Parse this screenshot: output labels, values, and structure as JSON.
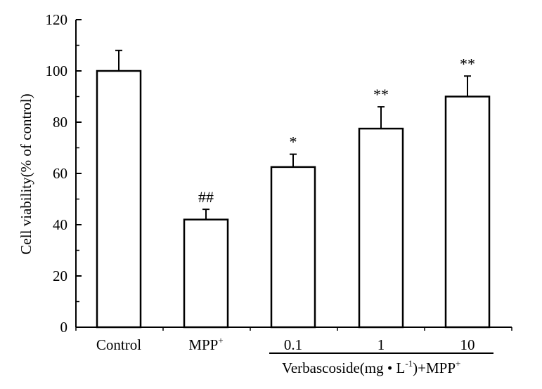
{
  "chart_data": {
    "type": "bar",
    "categories": [
      {
        "main": "Control",
        "sup": ""
      },
      {
        "main": "MPP",
        "sup": "+"
      },
      {
        "main": "0.1",
        "sup": ""
      },
      {
        "main": "1",
        "sup": ""
      },
      {
        "main": "10",
        "sup": ""
      }
    ],
    "values": [
      100,
      42,
      62.5,
      77.5,
      90
    ],
    "errors": [
      8,
      4,
      5,
      8.5,
      8
    ],
    "significance": [
      "",
      "##",
      "*",
      "**",
      "**"
    ],
    "ylabel": "Cell viability(% of control)",
    "ylim": [
      0,
      120
    ],
    "yticks": [
      0,
      20,
      40,
      60,
      80,
      100,
      120
    ],
    "group_label": {
      "parts": [
        "Verbascoside(mg • L",
        "-1",
        ")+MPP",
        "+"
      ]
    },
    "bar_fill": "#ffffff",
    "bar_stroke": "#000000",
    "grid": false
  }
}
